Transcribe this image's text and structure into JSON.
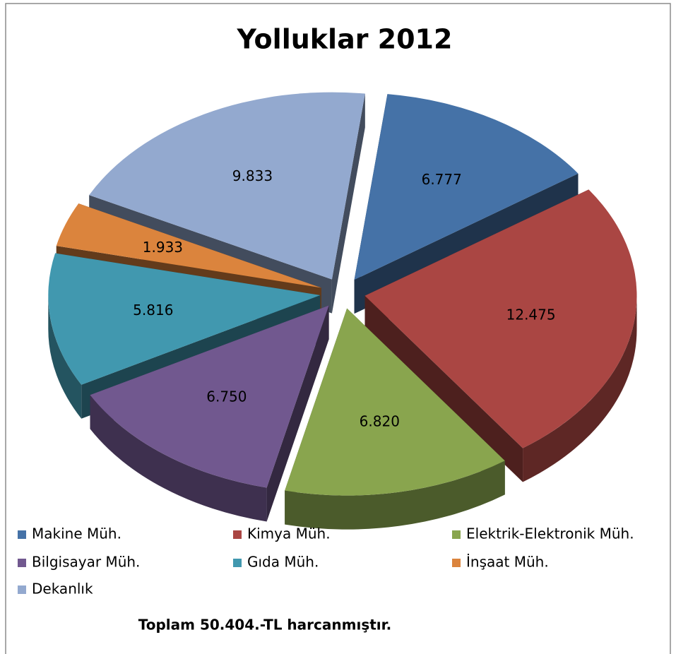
{
  "chart_data": {
    "type": "pie3d",
    "title": "Yolluklar 2012",
    "categories": [
      "Makine Müh.",
      "Kimya Müh.",
      "Elektrik-Elektronik Müh.",
      "Bilgisayar Müh.",
      "Gıda Müh.",
      "İnşaat Müh.",
      "Dekanlık"
    ],
    "values": [
      6777,
      12475,
      6820,
      6750,
      5816,
      1933,
      9833
    ],
    "value_labels": [
      "6.777",
      "12.475",
      "6.820",
      "6.750",
      "5.816",
      "1.933",
      "9.833"
    ],
    "colors": [
      "#4572a7",
      "#aa4643",
      "#89a54e",
      "#71588f",
      "#4198af",
      "#db843d",
      "#93a9cf"
    ],
    "legend": "bottom",
    "annotation": "Toplam 50.404.-TL harcanmıştır."
  }
}
